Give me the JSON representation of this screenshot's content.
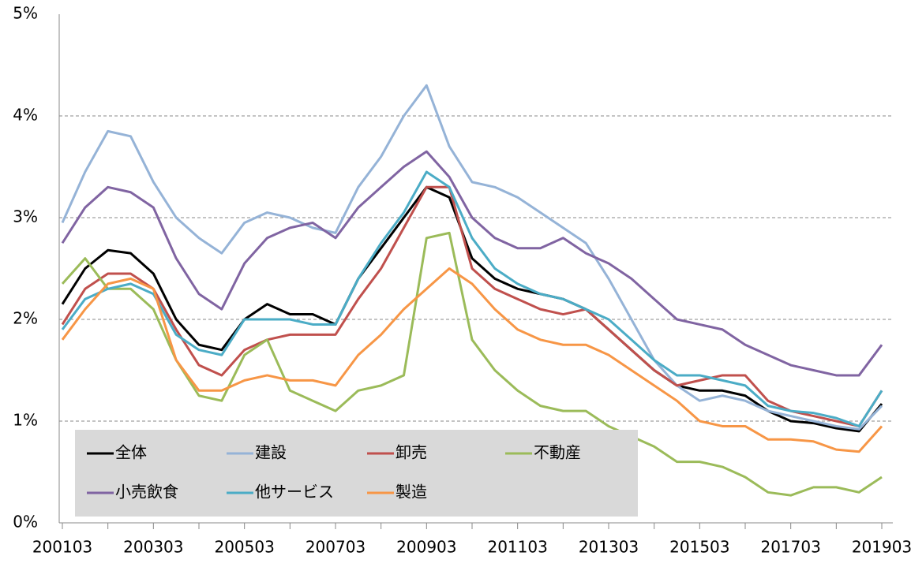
{
  "chart_data": {
    "type": "line",
    "categories": [
      "200103",
      null,
      null,
      null,
      "200303",
      null,
      null,
      null,
      "200503",
      null,
      null,
      null,
      "200703",
      null,
      null,
      null,
      "200903",
      null,
      null,
      null,
      "201103",
      null,
      null,
      null,
      "201303",
      null,
      null,
      null,
      "201503",
      null,
      null,
      null,
      "201703",
      null,
      null,
      null,
      "201903"
    ],
    "series": [
      {
        "name": "全体",
        "color": "#000000",
        "values": [
          2.15,
          2.5,
          2.68,
          2.65,
          2.45,
          2.0,
          1.75,
          1.7,
          2.0,
          2.15,
          2.05,
          2.05,
          1.95,
          2.4,
          2.7,
          3.0,
          3.3,
          3.2,
          2.6,
          2.4,
          2.3,
          2.25,
          2.2,
          2.1,
          1.9,
          1.7,
          1.5,
          1.35,
          1.3,
          1.3,
          1.25,
          1.1,
          1.0,
          0.98,
          0.93,
          0.9,
          1.17
        ]
      },
      {
        "name": "建設",
        "color": "#95b3d7",
        "values": [
          2.95,
          3.45,
          3.85,
          3.8,
          3.35,
          3.0,
          2.8,
          2.65,
          2.95,
          3.05,
          3.0,
          2.9,
          2.85,
          3.3,
          3.6,
          4.0,
          4.3,
          3.7,
          3.35,
          3.3,
          3.2,
          3.05,
          2.9,
          2.75,
          2.4,
          2.0,
          1.6,
          1.35,
          1.2,
          1.25,
          1.2,
          1.1,
          1.05,
          1.0,
          0.95,
          0.92,
          1.15
        ]
      },
      {
        "name": "卸売",
        "color": "#c0504d",
        "values": [
          1.95,
          2.3,
          2.45,
          2.45,
          2.3,
          1.9,
          1.55,
          1.45,
          1.7,
          1.8,
          1.85,
          1.85,
          1.85,
          2.2,
          2.5,
          2.9,
          3.3,
          3.3,
          2.5,
          2.3,
          2.2,
          2.1,
          2.05,
          2.1,
          1.9,
          1.7,
          1.5,
          1.35,
          1.4,
          1.45,
          1.45,
          1.2,
          1.1,
          1.05,
          1.0,
          0.95,
          1.3
        ]
      },
      {
        "name": "不動産",
        "color": "#9bbb59",
        "values": [
          2.35,
          2.6,
          2.3,
          2.3,
          2.1,
          1.6,
          1.25,
          1.2,
          1.65,
          1.8,
          1.3,
          1.2,
          1.1,
          1.3,
          1.35,
          1.45,
          2.8,
          2.85,
          1.8,
          1.5,
          1.3,
          1.15,
          1.1,
          1.1,
          0.95,
          0.85,
          0.75,
          0.6,
          0.6,
          0.55,
          0.45,
          0.3,
          0.27,
          0.35,
          0.35,
          0.3,
          0.45
        ]
      },
      {
        "name": "小売飲食",
        "color": "#8064a2",
        "values": [
          2.75,
          3.1,
          3.3,
          3.25,
          3.1,
          2.6,
          2.25,
          2.1,
          2.55,
          2.8,
          2.9,
          2.95,
          2.8,
          3.1,
          3.3,
          3.5,
          3.65,
          3.4,
          3.0,
          2.8,
          2.7,
          2.7,
          2.8,
          2.65,
          2.55,
          2.4,
          2.2,
          2.0,
          1.95,
          1.9,
          1.75,
          1.65,
          1.55,
          1.5,
          1.45,
          1.45,
          1.75
        ]
      },
      {
        "name": "他サービス",
        "color": "#4bacc6",
        "values": [
          1.9,
          2.2,
          2.3,
          2.35,
          2.25,
          1.85,
          1.7,
          1.65,
          2.0,
          2.0,
          2.0,
          1.95,
          1.95,
          2.4,
          2.75,
          3.05,
          3.45,
          3.3,
          2.8,
          2.5,
          2.35,
          2.25,
          2.2,
          2.1,
          2.0,
          1.8,
          1.6,
          1.45,
          1.45,
          1.4,
          1.35,
          1.15,
          1.1,
          1.08,
          1.03,
          0.95,
          1.3
        ]
      },
      {
        "name": "製造",
        "color": "#f79646",
        "values": [
          1.8,
          2.1,
          2.35,
          2.4,
          2.3,
          1.6,
          1.3,
          1.3,
          1.4,
          1.45,
          1.4,
          1.4,
          1.35,
          1.65,
          1.85,
          2.1,
          2.3,
          2.5,
          2.35,
          2.1,
          1.9,
          1.8,
          1.75,
          1.75,
          1.65,
          1.5,
          1.35,
          1.2,
          1.0,
          0.95,
          0.95,
          0.82,
          0.82,
          0.8,
          0.72,
          0.7,
          0.95
        ]
      }
    ],
    "ylim": [
      0,
      5
    ],
    "yticks": [
      {
        "value": 0,
        "label": "0%"
      },
      {
        "value": 1,
        "label": "1%"
      },
      {
        "value": 2,
        "label": "2%"
      },
      {
        "value": 3,
        "label": "3%"
      },
      {
        "value": 4,
        "label": "4%"
      },
      {
        "value": 5,
        "label": "5%"
      }
    ],
    "grid": true,
    "legend": "lower left"
  }
}
